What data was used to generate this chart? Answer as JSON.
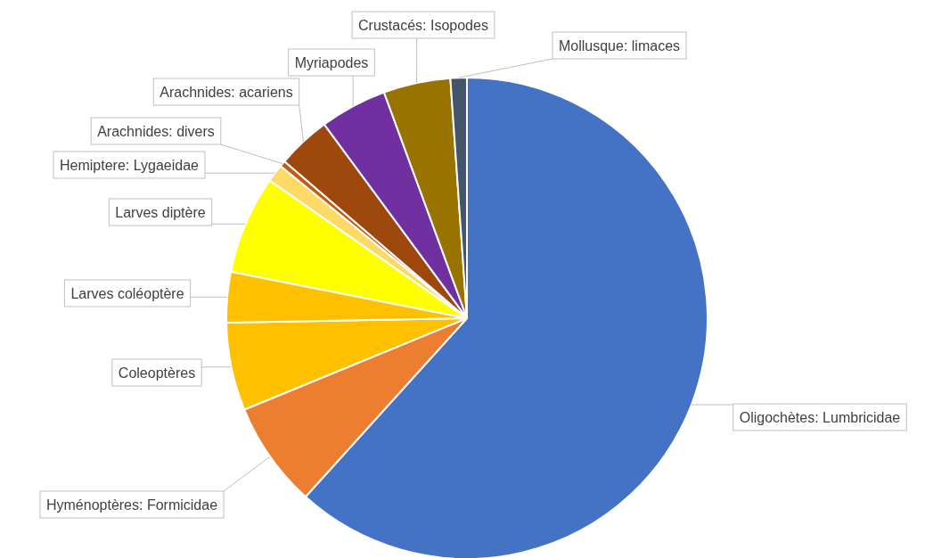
{
  "chart_data": {
    "type": "pie",
    "categories": [
      "Oligochètes: Lumbricidae",
      "Hyménoptères: Formicidae",
      "Coleoptères",
      "Larves coléoptère",
      "Larves diptère",
      "Hemiptere: Lygaeidae",
      "Arachnides: divers",
      "Arachnides: acariens",
      "Myriapodes",
      "Crustacés: Isopodes",
      "Mollusque: limaces"
    ],
    "values": [
      61.7,
      7.1,
      5.9,
      3.4,
      6.6,
      1.2,
      0.4,
      3.6,
      4.5,
      4.5,
      1.1
    ],
    "colors": [
      "#4472c4",
      "#ed7d31",
      "#ffc000",
      "#ffc000",
      "#ffff00",
      "#ffd966",
      "#c55a11",
      "#9e480e",
      "#7030a0",
      "#997300",
      "#44546a"
    ]
  }
}
